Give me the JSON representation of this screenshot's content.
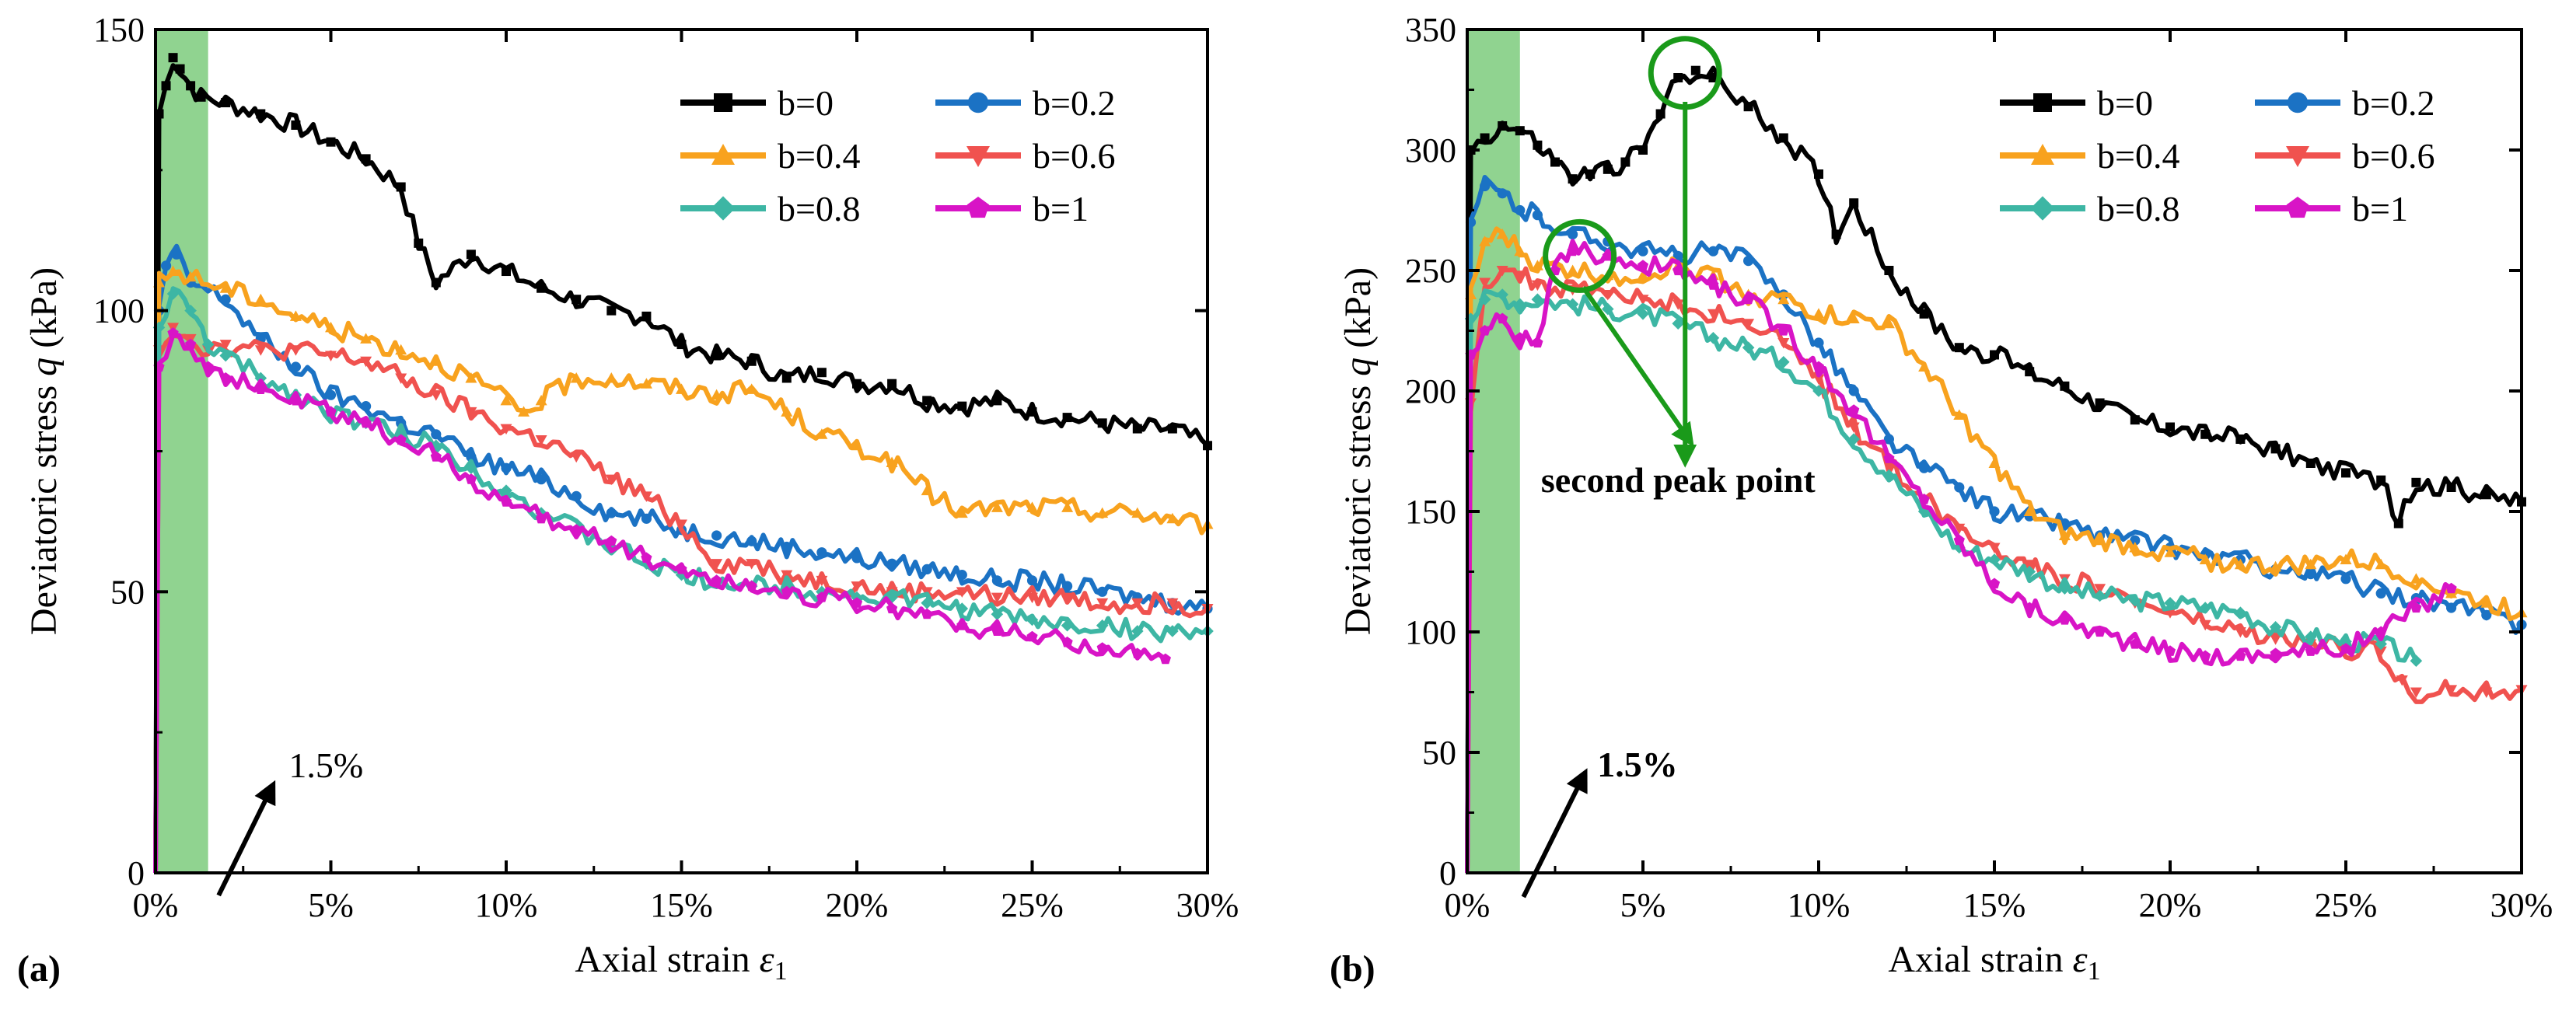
{
  "chart_data": [
    {
      "type": "line",
      "panel_label": "(a)",
      "xlabel": "Axial strain ε1",
      "xlabel_main": "Axial strain ",
      "xlabel_symbol": "ε",
      "xlabel_sub": "1",
      "ylabel": "Deviatoric stress q (kPa)",
      "ylabel_main": "Deviatoric stress ",
      "ylabel_symbol": "q",
      "ylabel_unit": " (kPa)",
      "xlim": [
        0,
        30
      ],
      "ylim": [
        0,
        150
      ],
      "xticks": [
        0,
        5,
        10,
        15,
        20,
        25,
        30
      ],
      "xtick_labels": [
        "0%",
        "5%",
        "10%",
        "15%",
        "20%",
        "25%",
        "30%"
      ],
      "yticks": [
        0,
        50,
        100,
        150
      ],
      "ytick_labels": [
        "0",
        "50",
        "100",
        "150"
      ],
      "highlight_band": {
        "x0": 0,
        "x1": 1.5,
        "color": "#7ccb7c"
      },
      "annotations": [
        {
          "text": "1.5%",
          "bold": false,
          "arrow_from": [
            1.8,
            -4
          ],
          "arrow_to": [
            3.3,
            15
          ],
          "text_at": [
            3.8,
            17
          ]
        }
      ],
      "legend": {
        "placement": "top-right",
        "columns": 2
      },
      "series": [
        {
          "name": "b=0",
          "color": "#000000",
          "marker": "square",
          "x": [
            0,
            0.1,
            0.3,
            0.5,
            0.7,
            1.0,
            1.3,
            2.0,
            3.0,
            4.0,
            5.0,
            6.0,
            7.0,
            7.5,
            8.0,
            9.0,
            10.0,
            11.0,
            12.0,
            13.0,
            14.0,
            15.0,
            16.0,
            17.0,
            18.0,
            19.0,
            20.0,
            21.0,
            22.0,
            23.0,
            24.0,
            25.0,
            26.0,
            27.0,
            28.0,
            29.0,
            30.0
          ],
          "y": [
            0,
            135,
            140,
            145,
            143,
            140,
            138,
            137,
            135,
            133,
            130,
            127,
            122,
            112,
            105,
            110,
            107,
            104,
            102,
            100,
            99,
            94,
            92,
            91,
            88,
            89,
            87,
            87,
            84,
            83,
            84,
            82,
            81,
            80,
            79,
            79,
            76
          ]
        },
        {
          "name": "b=0.2",
          "color": "#1b72c4",
          "marker": "circle",
          "x": [
            0,
            0.1,
            0.3,
            0.6,
            1.0,
            2.0,
            3.0,
            4.0,
            5.0,
            6.0,
            7.0,
            8.0,
            9.0,
            10.0,
            11.0,
            12.0,
            13.0,
            14.0,
            15.0,
            16.0,
            17.0,
            18.0,
            19.0,
            20.0,
            21.0,
            22.0,
            23.0,
            24.0,
            25.0,
            26.0,
            27.0,
            28.0,
            29.0,
            30.0
          ],
          "y": [
            0,
            100,
            108,
            110,
            105,
            102,
            95,
            90,
            85,
            83,
            80,
            78,
            74,
            72,
            70,
            67,
            64,
            63,
            61,
            60,
            59,
            58,
            57,
            56,
            55,
            54,
            53,
            52,
            52,
            51,
            50,
            49,
            48,
            47
          ]
        },
        {
          "name": "b=0.4",
          "color": "#f8a21e",
          "marker": "triangle-up",
          "x": [
            0,
            0.1,
            0.5,
            1.0,
            2.0,
            3.0,
            4.0,
            5.0,
            6.0,
            7.0,
            8.0,
            9.0,
            10.0,
            10.5,
            11.0,
            12.0,
            13.0,
            14.0,
            15.0,
            16.0,
            17.0,
            18.0,
            19.0,
            20.0,
            21.0,
            22.0,
            23.0,
            24.0,
            25.0,
            26.0,
            27.0,
            28.0,
            29.0,
            30.0
          ],
          "y": [
            0,
            105,
            107,
            106,
            104,
            102,
            99,
            97,
            95,
            93,
            91,
            88,
            84,
            82,
            84,
            88,
            88,
            87,
            86,
            85,
            86,
            82,
            78,
            76,
            73,
            68,
            64,
            65,
            65,
            65,
            64,
            64,
            63,
            62
          ]
        },
        {
          "name": "b=0.6",
          "color": "#f0524f",
          "marker": "triangle-down",
          "x": [
            0,
            0.1,
            0.5,
            1.0,
            1.5,
            2.0,
            3.0,
            4.0,
            5.0,
            6.0,
            7.0,
            8.0,
            9.0,
            10.0,
            11.0,
            12.0,
            13.0,
            14.0,
            15.0,
            16.0,
            17.0,
            18.0,
            19.0,
            20.0,
            21.0,
            22.0,
            23.0,
            24.0,
            25.0,
            26.0,
            27.0,
            28.0,
            29.0,
            30.0
          ],
          "y": [
            0,
            93,
            97,
            95,
            93,
            94,
            93,
            93,
            92,
            91,
            88,
            85,
            82,
            79,
            77,
            74,
            70,
            67,
            62,
            55,
            55,
            53,
            52,
            51,
            50,
            50,
            50,
            49,
            49,
            49,
            48,
            48,
            48,
            47
          ]
        },
        {
          "name": "b=0.8",
          "color": "#3db6a4",
          "marker": "diamond",
          "x": [
            0,
            0.1,
            0.5,
            1.0,
            1.5,
            2.0,
            3.0,
            4.0,
            5.0,
            6.0,
            7.0,
            8.0,
            9.0,
            10.0,
            11.0,
            12.0,
            13.0,
            14.0,
            15.0,
            16.0,
            17.0,
            18.0,
            19.0,
            20.0,
            21.0,
            22.0,
            23.0,
            24.0,
            25.0,
            26.0,
            27.0,
            28.0,
            29.0,
            30.0
          ],
          "y": [
            0,
            97,
            103,
            100,
            94,
            92,
            88,
            85,
            82,
            80,
            78,
            76,
            72,
            68,
            64,
            61,
            58,
            55,
            53,
            52,
            51,
            51,
            50,
            49,
            49,
            48,
            47,
            46,
            45,
            44,
            44,
            43,
            43,
            43
          ]
        },
        {
          "name": "b=1",
          "color": "#d814c6",
          "marker": "pentagon",
          "x": [
            0,
            0.1,
            0.5,
            1.0,
            1.5,
            2.0,
            3.0,
            4.0,
            5.0,
            6.0,
            7.0,
            8.0,
            9.0,
            10.0,
            11.0,
            12.0,
            13.0,
            14.0,
            15.0,
            16.0,
            17.0,
            18.0,
            19.0,
            20.0,
            21.0,
            22.0,
            23.0,
            24.0,
            25.0,
            26.0,
            27.0,
            28.0,
            28.8
          ],
          "y": [
            0,
            90,
            96,
            94,
            90,
            88,
            86,
            84,
            82,
            80,
            77,
            74,
            70,
            66,
            63,
            61,
            59,
            56,
            54,
            52,
            51,
            50,
            49,
            48,
            47,
            46,
            44,
            43,
            42,
            41,
            40,
            39,
            38
          ]
        }
      ]
    },
    {
      "type": "line",
      "panel_label": "(b)",
      "xlabel": "Axial strain ε1",
      "xlabel_main": "Axial strain ",
      "xlabel_symbol": "ε",
      "xlabel_sub": "1",
      "ylabel": "Deviatoric stress q (kPa)",
      "ylabel_main": "Deviatoric stress ",
      "ylabel_symbol": "q",
      "ylabel_unit": " (kPa)",
      "xlim": [
        0,
        30
      ],
      "ylim": [
        0,
        350
      ],
      "xticks": [
        0,
        5,
        10,
        15,
        20,
        25,
        30
      ],
      "xtick_labels": [
        "0%",
        "5%",
        "10%",
        "15%",
        "20%",
        "25%",
        "30%"
      ],
      "yticks": [
        0,
        50,
        100,
        150,
        200,
        250,
        300,
        350
      ],
      "ytick_labels": [
        "0",
        "50",
        "100",
        "150",
        "200",
        "250",
        "300",
        "350"
      ],
      "highlight_band": {
        "x0": 0,
        "x1": 1.5,
        "color": "#7ccb7c"
      },
      "annotations": [
        {
          "text": "1.5%",
          "bold": true,
          "arrow_from": [
            1.6,
            -10
          ],
          "arrow_to": [
            3.3,
            40
          ],
          "text_at": [
            3.7,
            40
          ]
        },
        {
          "text": "second peak point",
          "bold": true,
          "text_at": [
            2.1,
            158
          ],
          "peak_circles": [
            {
              "x": 3.2,
              "y": 256
            },
            {
              "x": 6.2,
              "y": 332
            }
          ],
          "arrows": [
            {
              "from": [
                3.3,
                243
              ],
              "to": [
                6.3,
                180
              ]
            },
            {
              "from": [
                6.2,
                320
              ],
              "to": [
                6.2,
                172
              ]
            }
          ]
        }
      ],
      "legend": {
        "placement": "top-right",
        "columns": 2
      },
      "series": [
        {
          "name": "b=0",
          "color": "#000000",
          "marker": "square",
          "x": [
            0,
            0.1,
            0.5,
            1.0,
            1.5,
            2.0,
            2.5,
            3.0,
            3.5,
            4.0,
            4.5,
            5.0,
            5.5,
            6.0,
            6.5,
            7.0,
            8.0,
            9.0,
            10.0,
            10.5,
            11.0,
            12.0,
            13.0,
            14.0,
            15.0,
            16.0,
            17.0,
            18.0,
            19.0,
            20.0,
            21.0,
            22.0,
            23.0,
            24.0,
            25.0,
            26.0,
            26.5,
            27.0,
            28.0,
            29.0,
            30.0
          ],
          "y": [
            0,
            300,
            305,
            310,
            308,
            302,
            295,
            288,
            290,
            292,
            295,
            300,
            315,
            330,
            333,
            330,
            318,
            305,
            290,
            265,
            278,
            250,
            232,
            218,
            215,
            208,
            202,
            195,
            188,
            185,
            182,
            180,
            176,
            170,
            166,
            163,
            145,
            162,
            160,
            157,
            154
          ]
        },
        {
          "name": "b=0.2",
          "color": "#1b72c4",
          "marker": "circle",
          "x": [
            0,
            0.1,
            0.5,
            1.0,
            1.5,
            2.0,
            3.0,
            4.0,
            5.0,
            6.0,
            7.0,
            8.0,
            9.0,
            10.0,
            11.0,
            12.0,
            13.0,
            14.0,
            15.0,
            16.0,
            17.0,
            18.0,
            19.0,
            20.0,
            21.0,
            22.0,
            23.0,
            24.0,
            25.0,
            26.0,
            27.0,
            28.0,
            29.0,
            30.0
          ],
          "y": [
            0,
            270,
            285,
            282,
            275,
            273,
            265,
            262,
            258,
            256,
            258,
            254,
            240,
            220,
            200,
            180,
            168,
            160,
            150,
            148,
            145,
            140,
            138,
            135,
            132,
            130,
            126,
            124,
            122,
            116,
            114,
            110,
            107,
            103
          ]
        },
        {
          "name": "b=0.4",
          "color": "#f8a21e",
          "marker": "triangle-up",
          "x": [
            0,
            0.1,
            0.5,
            1.0,
            1.5,
            2.0,
            3.0,
            4.0,
            5.0,
            6.0,
            7.0,
            8.0,
            9.0,
            10.0,
            11.0,
            12.0,
            13.0,
            14.0,
            15.0,
            16.0,
            17.0,
            18.0,
            19.0,
            20.0,
            21.0,
            22.0,
            23.0,
            24.0,
            25.0,
            26.0,
            27.0,
            28.0,
            29.0,
            30.0
          ],
          "y": [
            0,
            240,
            262,
            265,
            258,
            252,
            250,
            248,
            248,
            252,
            248,
            240,
            238,
            232,
            230,
            228,
            210,
            190,
            170,
            150,
            140,
            138,
            135,
            133,
            130,
            128,
            127,
            128,
            130,
            128,
            122,
            116,
            112,
            108
          ]
        },
        {
          "name": "b=0.6",
          "color": "#f0524f",
          "marker": "triangle-down",
          "x": [
            0,
            0.1,
            0.5,
            1.0,
            1.5,
            2.0,
            3.0,
            4.0,
            5.0,
            6.0,
            7.0,
            8.0,
            9.0,
            10.0,
            11.0,
            12.0,
            13.0,
            14.0,
            15.0,
            16.0,
            17.0,
            18.0,
            19.0,
            20.0,
            21.0,
            22.0,
            23.0,
            24.0,
            25.0,
            26.0,
            26.6,
            27.0,
            28.0,
            29.0,
            30.0
          ],
          "y": [
            0,
            195,
            245,
            250,
            248,
            244,
            242,
            240,
            238,
            236,
            232,
            228,
            220,
            205,
            185,
            170,
            155,
            143,
            135,
            128,
            122,
            118,
            112,
            108,
            103,
            100,
            97,
            95,
            93,
            92,
            80,
            75,
            76,
            75,
            76
          ]
        },
        {
          "name": "b=0.8",
          "color": "#3db6a4",
          "marker": "diamond",
          "x": [
            0,
            0.1,
            0.5,
            1.0,
            1.5,
            2.0,
            3.0,
            4.0,
            5.0,
            6.0,
            7.0,
            8.0,
            9.0,
            10.0,
            11.0,
            12.0,
            13.0,
            14.0,
            15.0,
            16.0,
            17.0,
            18.0,
            19.0,
            20.0,
            21.0,
            22.0,
            23.0,
            24.0,
            25.0,
            26.0,
            27.0
          ],
          "y": [
            0,
            230,
            238,
            240,
            236,
            238,
            236,
            234,
            232,
            228,
            222,
            218,
            212,
            200,
            180,
            165,
            150,
            135,
            130,
            125,
            118,
            115,
            113,
            112,
            110,
            108,
            102,
            98,
            96,
            95,
            88
          ]
        },
        {
          "name": "b=1",
          "color": "#d814c6",
          "marker": "pentagon",
          "x": [
            0,
            0.1,
            0.5,
            1.0,
            1.5,
            2.0,
            2.5,
            3.0,
            4.0,
            5.0,
            6.0,
            7.0,
            8.0,
            9.0,
            10.0,
            11.0,
            12.0,
            13.0,
            14.0,
            15.0,
            16.0,
            17.0,
            18.0,
            19.0,
            20.0,
            21.0,
            22.0,
            23.0,
            24.0,
            25.0,
            26.0,
            27.0,
            28.0
          ],
          "y": [
            0,
            215,
            225,
            230,
            222,
            220,
            250,
            258,
            256,
            252,
            250,
            244,
            238,
            225,
            210,
            192,
            172,
            155,
            138,
            120,
            110,
            105,
            100,
            95,
            92,
            90,
            90,
            91,
            92,
            93,
            100,
            110,
            118
          ]
        }
      ]
    }
  ]
}
